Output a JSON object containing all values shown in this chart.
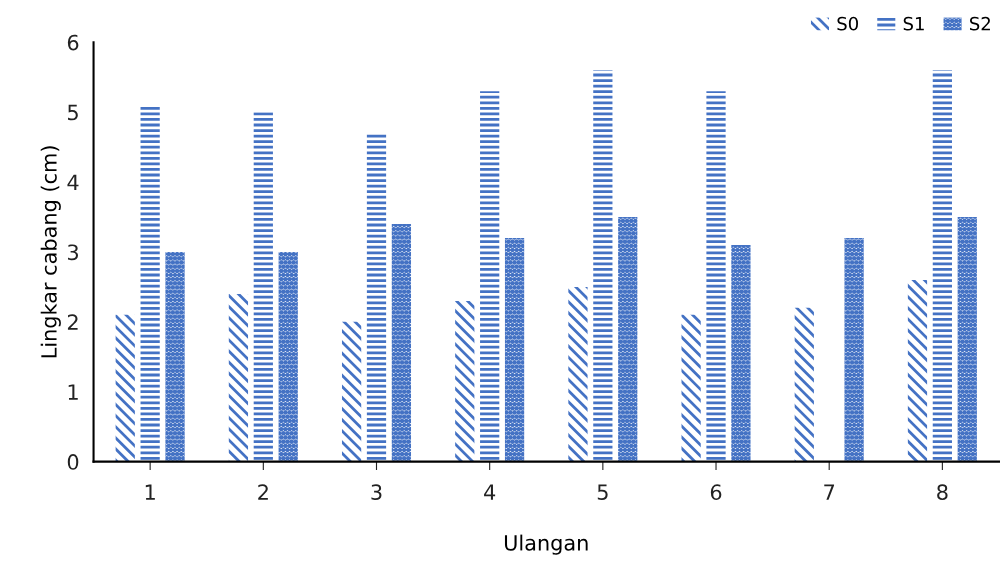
{
  "chart_data": {
    "type": "bar",
    "xlabel": "Ulangan",
    "ylabel": "Lingkar cabang (cm)",
    "categories": [
      "1",
      "2",
      "3",
      "4",
      "5",
      "6",
      "7",
      "8"
    ],
    "series": [
      {
        "name": "S0",
        "color": "#4472c4",
        "values": [
          2.1,
          2.4,
          2.0,
          2.3,
          2.5,
          2.1,
          2.2,
          2.6
        ]
      },
      {
        "name": "S1",
        "color": "#4472c4",
        "values": [
          5.1,
          5.0,
          4.7,
          5.3,
          5.6,
          5.3,
          null,
          5.6
        ]
      },
      {
        "name": "S2",
        "color": "#4472c4",
        "values": [
          3.0,
          3.0,
          3.4,
          3.2,
          3.5,
          3.1,
          3.2,
          3.5
        ]
      }
    ],
    "ylim": [
      0,
      6
    ],
    "yticks": [
      0,
      1,
      2,
      3,
      4,
      5,
      6
    ],
    "grid": false,
    "legend": "top right"
  }
}
